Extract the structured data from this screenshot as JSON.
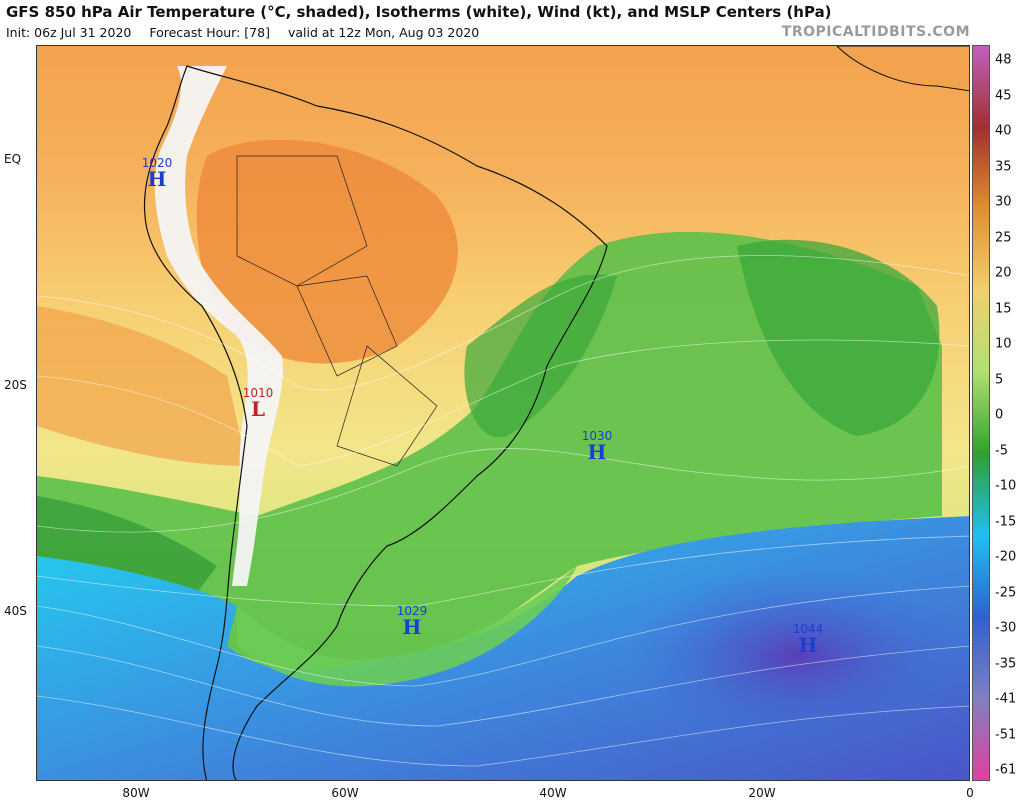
{
  "header": {
    "title": "GFS 850 hPa Air Temperature (°C, shaded), Isotherms (white), Wind (kt), and MSLP Centers (hPa)",
    "init": "Init: 06z Jul 31 2020",
    "forecast_hour": "Forecast Hour: [78]",
    "valid": "valid at 12z Mon, Aug 03 2020",
    "brand": "TROPICALTIDBITS.COM"
  },
  "axes": {
    "lat_labels": [
      "EQ",
      "20S",
      "40S"
    ],
    "lon_labels": [
      "80W",
      "60W",
      "40W",
      "20W",
      "0"
    ]
  },
  "colorbar": {
    "labels": [
      "48",
      "45",
      "40",
      "35",
      "30",
      "25",
      "20",
      "15",
      "10",
      "5",
      "0",
      "-5",
      "-10",
      "-15",
      "-20",
      "-25",
      "-30",
      "-35",
      "-41",
      "-51",
      "-61"
    ],
    "colors": [
      "#c060c0",
      "#a03030",
      "#e09030",
      "#f0d070",
      "#b0e070",
      "#30a030",
      "#20c0f0",
      "#3060d0",
      "#8080c0",
      "#e040a0"
    ]
  },
  "pressure_centers": [
    {
      "value": "1020",
      "symbol": "H",
      "color": "#1a3fd0"
    },
    {
      "value": "1010",
      "symbol": "L",
      "color": "#c0202a"
    },
    {
      "value": "1030",
      "symbol": "H",
      "color": "#1a3fd0"
    },
    {
      "value": "1029",
      "symbol": "H",
      "color": "#1a3fd0"
    },
    {
      "value": "1044",
      "symbol": "H",
      "color": "#1a3fd0"
    }
  ]
}
